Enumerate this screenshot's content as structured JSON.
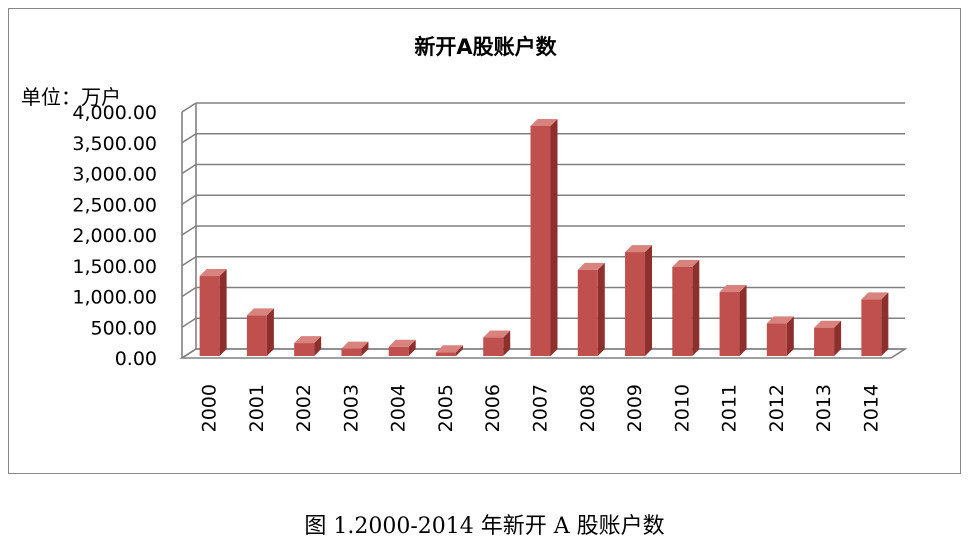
{
  "caption": "图 1.2000-2014 年新开 A 股账户数",
  "colors": {
    "bar": "#c0504d",
    "bar_side": "#8c2f2d",
    "bar_top": "#d9837f",
    "grid": "#808080"
  },
  "chart_data": {
    "type": "bar",
    "title": "新开A股账户数",
    "unit_label": "单位：万户",
    "categories": [
      "2000",
      "2001",
      "2002",
      "2003",
      "2004",
      "2005",
      "2006",
      "2007",
      "2008",
      "2009",
      "2010",
      "2011",
      "2012",
      "2013",
      "2014"
    ],
    "values": [
      1300,
      660,
      210,
      120,
      150,
      60,
      300,
      3740,
      1400,
      1690,
      1450,
      1040,
      530,
      460,
      920
    ],
    "ylim": [
      0,
      4000
    ],
    "yticks": [
      "0.00",
      "500.00",
      "1,000.00",
      "1,500.00",
      "2,000.00",
      "2,500.00",
      "3,000.00",
      "3,500.00",
      "4,000.00"
    ],
    "grid": true,
    "legend": "none"
  }
}
